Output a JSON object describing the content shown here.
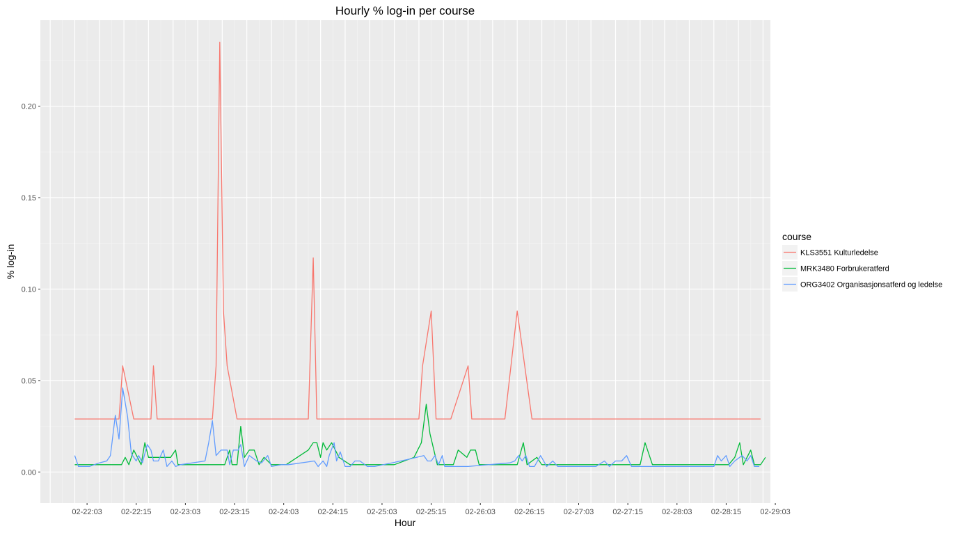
{
  "chart_data": {
    "type": "line",
    "title": "Hourly % log-in per course",
    "xlabel": "Hour",
    "ylabel": "% log-in",
    "ylim": [
      -0.017,
      0.247
    ],
    "yticks": [
      0.0,
      0.05,
      0.1,
      0.15,
      0.2
    ],
    "ytick_labels": [
      "0.00",
      "0.05",
      "0.10",
      "0.15",
      "0.20"
    ],
    "xlim": [
      -1.4,
      28.3
    ],
    "xtick_positions": [
      0.5,
      2.5,
      4.5,
      6.5,
      8.5,
      10.5,
      12.5,
      14.5,
      16.5,
      18.5,
      20.5,
      22.5,
      24.5,
      26.5,
      28.5
    ],
    "xtick_labels": [
      "02-22:03",
      "02-22:15",
      "02-23:03",
      "02-23:15",
      "02-24:03",
      "02-24:15",
      "02-25:03",
      "02-25:15",
      "02-26:03",
      "02-26:15",
      "02-27:03",
      "02-27:15",
      "02-28:03",
      "02-28:15",
      "02-29:03"
    ],
    "grid": true,
    "legend": {
      "title": "course",
      "position": "right"
    },
    "series": [
      {
        "name": "KLS3551 Kulturledelse",
        "color": "#F8766D",
        "points": [
          [
            0.0,
            0.029
          ],
          [
            1.8,
            0.029
          ],
          [
            1.95,
            0.058
          ],
          [
            2.4,
            0.029
          ],
          [
            3.1,
            0.029
          ],
          [
            3.2,
            0.058
          ],
          [
            3.35,
            0.029
          ],
          [
            5.6,
            0.029
          ],
          [
            5.75,
            0.058
          ],
          [
            5.9,
            0.235
          ],
          [
            6.05,
            0.088
          ],
          [
            6.2,
            0.058
          ],
          [
            6.6,
            0.029
          ],
          [
            9.5,
            0.029
          ],
          [
            9.7,
            0.117
          ],
          [
            9.85,
            0.029
          ],
          [
            14.0,
            0.029
          ],
          [
            14.15,
            0.058
          ],
          [
            14.5,
            0.088
          ],
          [
            14.7,
            0.029
          ],
          [
            15.3,
            0.029
          ],
          [
            16.0,
            0.058
          ],
          [
            16.15,
            0.029
          ],
          [
            17.5,
            0.029
          ],
          [
            18.0,
            0.088
          ],
          [
            18.6,
            0.029
          ],
          [
            27.9,
            0.029
          ]
        ]
      },
      {
        "name": "MRK3480 Forbrukeratferd",
        "color": "#00BA38",
        "points": [
          [
            0.0,
            0.004
          ],
          [
            1.9,
            0.004
          ],
          [
            2.05,
            0.008
          ],
          [
            2.2,
            0.004
          ],
          [
            2.4,
            0.012
          ],
          [
            2.7,
            0.004
          ],
          [
            2.85,
            0.016
          ],
          [
            3.0,
            0.008
          ],
          [
            3.9,
            0.008
          ],
          [
            4.1,
            0.012
          ],
          [
            4.2,
            0.004
          ],
          [
            6.1,
            0.004
          ],
          [
            6.3,
            0.012
          ],
          [
            6.4,
            0.004
          ],
          [
            6.6,
            0.004
          ],
          [
            6.75,
            0.025
          ],
          [
            6.9,
            0.008
          ],
          [
            7.1,
            0.012
          ],
          [
            7.3,
            0.012
          ],
          [
            7.5,
            0.004
          ],
          [
            7.7,
            0.008
          ],
          [
            8.0,
            0.004
          ],
          [
            8.6,
            0.004
          ],
          [
            9.5,
            0.012
          ],
          [
            9.7,
            0.016
          ],
          [
            9.85,
            0.016
          ],
          [
            10.0,
            0.008
          ],
          [
            10.1,
            0.016
          ],
          [
            10.25,
            0.012
          ],
          [
            10.45,
            0.016
          ],
          [
            10.75,
            0.008
          ],
          [
            11.2,
            0.004
          ],
          [
            13.0,
            0.004
          ],
          [
            13.8,
            0.008
          ],
          [
            14.1,
            0.016
          ],
          [
            14.3,
            0.037
          ],
          [
            14.45,
            0.021
          ],
          [
            14.75,
            0.004
          ],
          [
            15.4,
            0.004
          ],
          [
            15.6,
            0.012
          ],
          [
            15.95,
            0.008
          ],
          [
            16.1,
            0.012
          ],
          [
            16.3,
            0.012
          ],
          [
            16.45,
            0.004
          ],
          [
            17.0,
            0.004
          ],
          [
            18.0,
            0.004
          ],
          [
            18.25,
            0.016
          ],
          [
            18.4,
            0.004
          ],
          [
            18.8,
            0.008
          ],
          [
            19.0,
            0.004
          ],
          [
            23.0,
            0.004
          ],
          [
            23.2,
            0.016
          ],
          [
            23.5,
            0.004
          ],
          [
            26.6,
            0.004
          ],
          [
            26.85,
            0.008
          ],
          [
            27.05,
            0.016
          ],
          [
            27.2,
            0.004
          ],
          [
            27.5,
            0.012
          ],
          [
            27.65,
            0.004
          ],
          [
            27.9,
            0.004
          ],
          [
            28.1,
            0.008
          ]
        ]
      },
      {
        "name": "ORG3402 Organisasjonsatferd og ledelse",
        "color": "#619CFF",
        "points": [
          [
            0.0,
            0.009
          ],
          [
            0.15,
            0.003
          ],
          [
            0.6,
            0.003
          ],
          [
            1.0,
            0.005
          ],
          [
            1.3,
            0.006
          ],
          [
            1.45,
            0.009
          ],
          [
            1.65,
            0.031
          ],
          [
            1.8,
            0.018
          ],
          [
            1.95,
            0.046
          ],
          [
            2.15,
            0.03
          ],
          [
            2.3,
            0.01
          ],
          [
            2.5,
            0.006
          ],
          [
            2.6,
            0.009
          ],
          [
            2.75,
            0.005
          ],
          [
            2.95,
            0.015
          ],
          [
            3.1,
            0.012
          ],
          [
            3.2,
            0.006
          ],
          [
            3.4,
            0.006
          ],
          [
            3.6,
            0.012
          ],
          [
            3.75,
            0.003
          ],
          [
            3.95,
            0.006
          ],
          [
            4.1,
            0.003
          ],
          [
            4.3,
            0.004
          ],
          [
            5.3,
            0.006
          ],
          [
            5.45,
            0.016
          ],
          [
            5.6,
            0.028
          ],
          [
            5.75,
            0.009
          ],
          [
            5.95,
            0.012
          ],
          [
            6.2,
            0.012
          ],
          [
            6.3,
            0.004
          ],
          [
            6.45,
            0.012
          ],
          [
            6.65,
            0.012
          ],
          [
            6.75,
            0.015
          ],
          [
            6.9,
            0.003
          ],
          [
            7.1,
            0.009
          ],
          [
            7.4,
            0.006
          ],
          [
            7.6,
            0.005
          ],
          [
            7.85,
            0.009
          ],
          [
            8.0,
            0.003
          ],
          [
            8.4,
            0.004
          ],
          [
            8.7,
            0.004
          ],
          [
            9.75,
            0.006
          ],
          [
            9.9,
            0.003
          ],
          [
            10.1,
            0.006
          ],
          [
            10.25,
            0.003
          ],
          [
            10.35,
            0.009
          ],
          [
            10.55,
            0.016
          ],
          [
            10.65,
            0.006
          ],
          [
            10.8,
            0.011
          ],
          [
            11.0,
            0.003
          ],
          [
            11.2,
            0.003
          ],
          [
            11.4,
            0.006
          ],
          [
            11.6,
            0.006
          ],
          [
            11.9,
            0.003
          ],
          [
            12.2,
            0.003
          ],
          [
            12.9,
            0.005
          ],
          [
            13.6,
            0.007
          ],
          [
            14.2,
            0.009
          ],
          [
            14.35,
            0.006
          ],
          [
            14.5,
            0.006
          ],
          [
            14.65,
            0.009
          ],
          [
            14.8,
            0.004
          ],
          [
            14.95,
            0.009
          ],
          [
            15.05,
            0.003
          ],
          [
            16.0,
            0.003
          ],
          [
            17.7,
            0.005
          ],
          [
            17.9,
            0.006
          ],
          [
            18.05,
            0.009
          ],
          [
            18.2,
            0.006
          ],
          [
            18.35,
            0.009
          ],
          [
            18.5,
            0.003
          ],
          [
            18.7,
            0.003
          ],
          [
            18.95,
            0.009
          ],
          [
            19.2,
            0.003
          ],
          [
            19.45,
            0.006
          ],
          [
            19.65,
            0.003
          ],
          [
            21.2,
            0.003
          ],
          [
            21.55,
            0.006
          ],
          [
            21.75,
            0.003
          ],
          [
            22.0,
            0.006
          ],
          [
            22.25,
            0.006
          ],
          [
            22.45,
            0.009
          ],
          [
            22.65,
            0.003
          ],
          [
            23.5,
            0.003
          ],
          [
            26.0,
            0.003
          ],
          [
            26.15,
            0.009
          ],
          [
            26.3,
            0.006
          ],
          [
            26.5,
            0.009
          ],
          [
            26.65,
            0.003
          ],
          [
            26.85,
            0.006
          ],
          [
            27.15,
            0.009
          ],
          [
            27.35,
            0.006
          ],
          [
            27.5,
            0.009
          ],
          [
            27.65,
            0.003
          ],
          [
            27.85,
            0.003
          ]
        ]
      }
    ]
  }
}
